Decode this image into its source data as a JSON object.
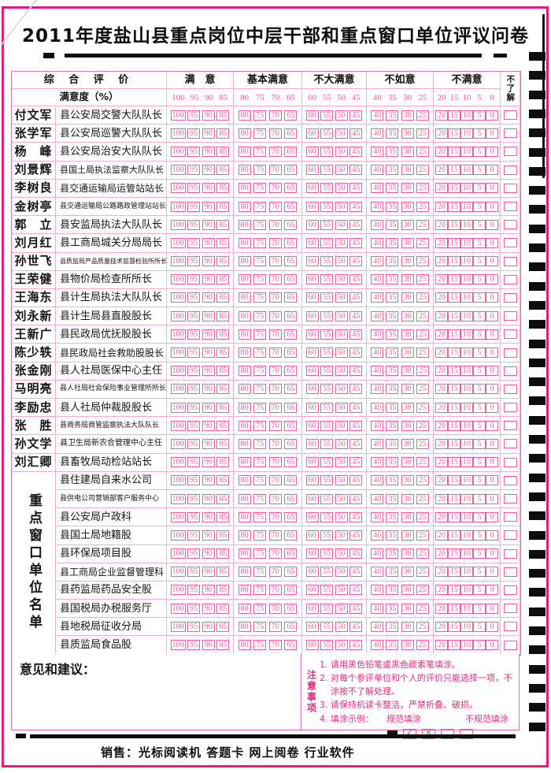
{
  "colors": {
    "page_border": "#e6197c",
    "bubble_pink": "#f2599f",
    "grid_pink": "#f6abd0",
    "table_border": "#ee6ca9",
    "notes_text": "#e8267f",
    "ink": "#131313"
  },
  "header": {
    "title": "2011年度盐山县重点岗位中层干部和重点窗口单位评议问卷"
  },
  "table": {
    "eval_header": "综 合 评 价",
    "degree_header": "满意度（%）",
    "unknown_header": "不了解",
    "categories": [
      {
        "label": "满　意",
        "values": [
          "100",
          "95",
          "90",
          "85"
        ]
      },
      {
        "label": "基本满意",
        "values": [
          "80",
          "75",
          "70",
          "65"
        ]
      },
      {
        "label": "不大满意",
        "values": [
          "60",
          "55",
          "50",
          "45"
        ]
      },
      {
        "label": "不如意",
        "values": [
          "40",
          "35",
          "30",
          "25"
        ]
      },
      {
        "label": "不满意",
        "values": [
          "20",
          "15",
          "10",
          "5",
          "0"
        ]
      }
    ],
    "cadres": [
      {
        "name": "付文军",
        "position": "县公安局交警大队队长"
      },
      {
        "name": "张学军",
        "position": "县公安局巡警大队队长"
      },
      {
        "name": "杨　峰",
        "position": "县公安局治安大队队长"
      },
      {
        "name": "刘景辉",
        "position": "县国土局执法监察大队队长"
      },
      {
        "name": "李树良",
        "position": "县交通运输局运管站站长"
      },
      {
        "name": "金树亭",
        "position": "县交通运输局公路路政管理站站长"
      },
      {
        "name": "郭　立",
        "position": "县安监局执法大队队长"
      },
      {
        "name": "刘月红",
        "position": "县工商局城关分局局长"
      },
      {
        "name": "孙世飞",
        "position": "县质监局产品质量技术监督检验所所长"
      },
      {
        "name": "王荣健",
        "position": "县物价局检查所所长"
      },
      {
        "name": "王海东",
        "position": "县计生局执法大队队长"
      },
      {
        "name": "刘永新",
        "position": "县计生局县直股股长"
      },
      {
        "name": "王新广",
        "position": "县民政局优抚股股长"
      },
      {
        "name": "陈少轶",
        "position": "县民政局社会救助股股长"
      },
      {
        "name": "张金刚",
        "position": "县人社局医保中心主任"
      },
      {
        "name": "马明亮",
        "position": "县人社局社会保险事业管理所所长"
      },
      {
        "name": "李励忠",
        "position": "县人社局仲裁股股长"
      },
      {
        "name": "张　胜",
        "position": "县商务局商管监察执法大队队长"
      },
      {
        "name": "孙文学",
        "position": "县卫生局新农合管理中心主任"
      },
      {
        "name": "刘汇卿",
        "position": "县畜牧局动检站站长"
      }
    ],
    "units_label": "重点窗口单位名单",
    "units": [
      "县住建局自来水公司",
      "县供电公司营销部客户服务中心",
      "县公安局户政科",
      "县国土局地籍股",
      "县环保局项目股",
      "县工商局企业监督管理科",
      "县药监局药品安全股",
      "县国税局办税服务厅",
      "县地税局征收分局",
      "县质监局食品股"
    ]
  },
  "feedback_label": "意见和建议：",
  "notes": {
    "label": "注意事项",
    "items": [
      "1. 请用黑色铅笔或黑色碳素笔填涂。",
      "2. 对每个参评单位和个人的评价只能选择一项，不涂按不了解处理。",
      "3. 请保持机读卡整洁，严禁折叠、破损。"
    ],
    "item4_prefix": "4. 填涂示例：",
    "good_label": "规范填涂",
    "bad_label": "不规范填涂"
  },
  "footer": "销售：光标阅读机 答题卡 网上阅卷 行业软件"
}
